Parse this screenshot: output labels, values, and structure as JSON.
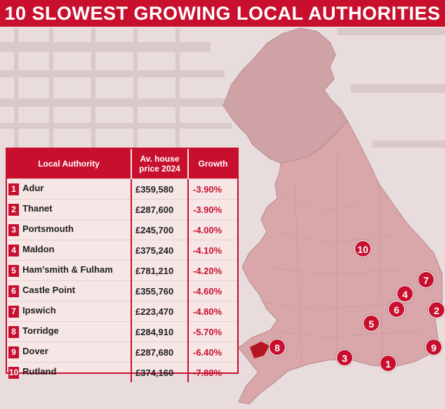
{
  "title": "10 SLOWEST GROWING LOCAL AUTHORITIES",
  "colors": {
    "accent": "#c8102e",
    "map_fill": "#d9a6aa",
    "table_bg": "#f7e6e6"
  },
  "chart_data": {
    "type": "table",
    "title": "10 SLOWEST GROWING LOCAL AUTHORITIES",
    "columns": [
      "Local Authority",
      "Av. house price 2024",
      "Growth"
    ],
    "rows": [
      {
        "rank": "1",
        "authority": "Adur",
        "price": "£359,580",
        "growth": "-3.90%"
      },
      {
        "rank": "2",
        "authority": "Thanet",
        "price": "£287,600",
        "growth": "-3.90%"
      },
      {
        "rank": "3",
        "authority": "Portsmouth",
        "price": "£245,700",
        "growth": "-4.00%"
      },
      {
        "rank": "4",
        "authority": "Maldon",
        "price": "£375,240",
        "growth": "-4.10%"
      },
      {
        "rank": "5",
        "authority": "Ham'smith & Fulham",
        "price": "£781,210",
        "growth": "-4.20%"
      },
      {
        "rank": "6",
        "authority": "Castle Point",
        "price": "£355,760",
        "growth": "-4.60%"
      },
      {
        "rank": "7",
        "authority": "Ipswich",
        "price": "£223,470",
        "growth": "-4.80%"
      },
      {
        "rank": "8",
        "authority": "Torridge",
        "price": "£284,910",
        "growth": "-5.70%"
      },
      {
        "rank": "9",
        "authority": "Dover",
        "price": "£287,680",
        "growth": "-6.40%"
      },
      {
        "rank": "10",
        "authority": "Rutland",
        "price": "£374,160",
        "growth": "-7.80%"
      }
    ],
    "map_markers": [
      "1",
      "2",
      "3",
      "4",
      "5",
      "6",
      "7",
      "8",
      "9",
      "10"
    ]
  }
}
